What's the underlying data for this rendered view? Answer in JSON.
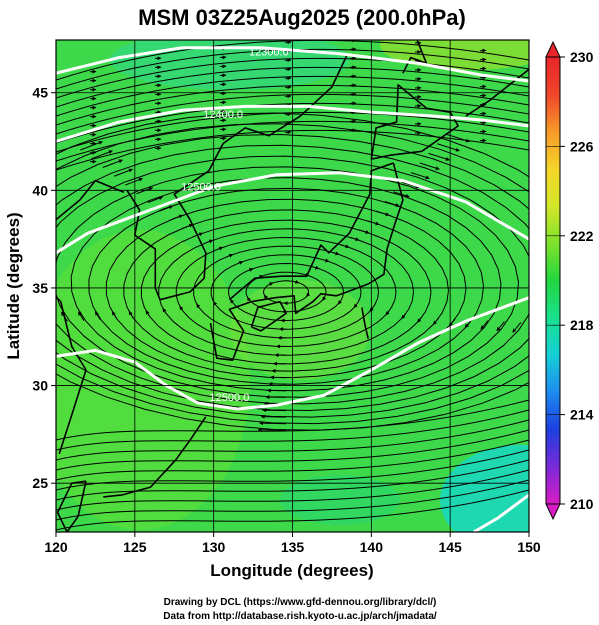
{
  "map": {
    "title": "MSM 03Z25Aug2025 (200.0hPa)",
    "xlabel": "Longitude (degrees)",
    "ylabel": "Latitude  (degrees)",
    "x_ticks": [
      120,
      125,
      130,
      135,
      140,
      145,
      150
    ],
    "y_ticks": [
      25,
      30,
      35,
      40,
      45
    ],
    "x_range": [
      120,
      150
    ],
    "y_range": [
      22.5,
      47.7
    ],
    "grid": true,
    "contour_labels": [
      {
        "text": "12300.0",
        "lon": 133.5,
        "lat": 46.9
      },
      {
        "text": "12400.0",
        "lon": 130.6,
        "lat": 43.7
      },
      {
        "text": "12500.0",
        "lon": 129.2,
        "lat": 40.0
      },
      {
        "text": "12500.0",
        "lon": 131.0,
        "lat": 29.2
      }
    ],
    "colorbar": {
      "ticks": [
        210,
        214,
        218,
        222,
        226,
        230
      ],
      "range": [
        210,
        230
      ],
      "colors": [
        "#d81cc3",
        "#7a2ad8",
        "#1d3fe0",
        "#1d8cf0",
        "#16cfd6",
        "#19e08d",
        "#22d640",
        "#7fe22c",
        "#d3e62a",
        "#f5d52a",
        "#f79a2a",
        "#f0452a",
        "#e8252a"
      ]
    },
    "credits": [
      "Drawing by DCL (https://www.gfd-dennou.org/library/dcl/)",
      "Data from http://database.rish.kyoto-u.ac.jp/arch/jmadata/"
    ]
  }
}
